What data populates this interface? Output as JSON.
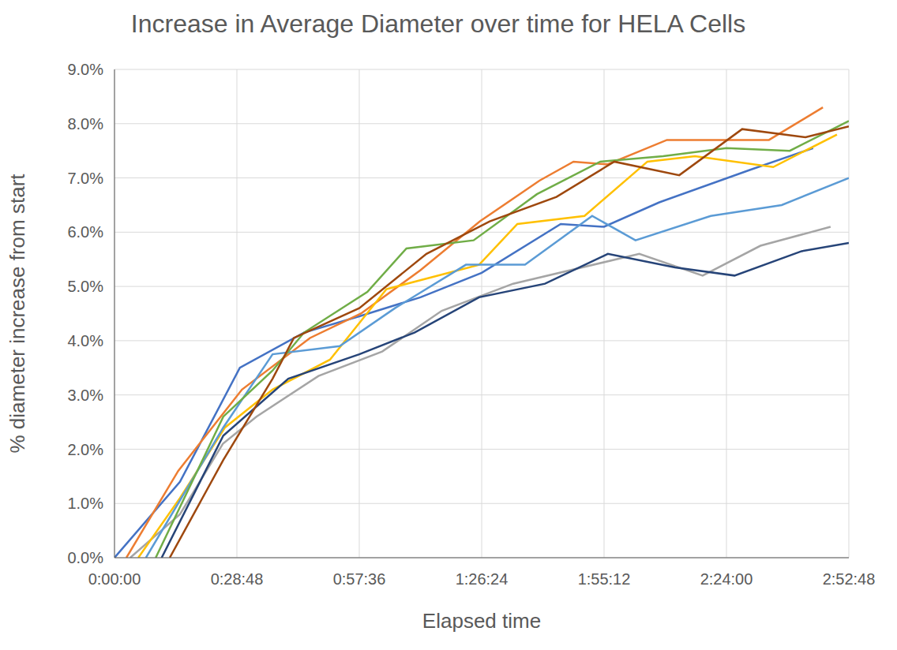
{
  "chart_data": {
    "type": "line",
    "title": "Increase in Average Diameter over time for HELA Cells",
    "x_label": "Elapsed time",
    "y_label": "% diameter increase from start",
    "xlim": [
      0,
      172.8
    ],
    "xticks": [
      {
        "value": 0,
        "label": "0:00:00"
      },
      {
        "value": 28.8,
        "label": "0:28:48"
      },
      {
        "value": 57.6,
        "label": "0:57:36"
      },
      {
        "value": 86.4,
        "label": "1:26:24"
      },
      {
        "value": 115.2,
        "label": "1:55:12"
      },
      {
        "value": 144,
        "label": "2:24:00"
      },
      {
        "value": 172.8,
        "label": "2:52:48"
      }
    ],
    "ylim": [
      0,
      9
    ],
    "yticks": [
      {
        "value": 0,
        "label": "0.0%"
      },
      {
        "value": 1,
        "label": "1.0%"
      },
      {
        "value": 2,
        "label": "2.0%"
      },
      {
        "value": 3,
        "label": "3.0%"
      },
      {
        "value": 4,
        "label": "4.0%"
      },
      {
        "value": 5,
        "label": "5.0%"
      },
      {
        "value": 6,
        "label": "6.0%"
      },
      {
        "value": 7,
        "label": "7.0%"
      },
      {
        "value": 8,
        "label": "8.0%"
      },
      {
        "value": 9,
        "label": "9.0%"
      }
    ],
    "grid": true,
    "series": [
      {
        "color": "#4472c4",
        "x": [
          0,
          15.4,
          29.5,
          44.6,
          57.6,
          72,
          86.4,
          105,
          115.2,
          128.2,
          149.6,
          164.4
        ],
        "values": [
          0,
          1.4,
          3.5,
          4.15,
          4.45,
          4.8,
          5.25,
          6.15,
          6.1,
          6.55,
          7.15,
          7.55
        ]
      },
      {
        "color": "#ed7d31",
        "x": [
          2.8,
          15,
          30,
          46,
          58,
          72,
          86,
          100,
          108,
          116,
          130,
          144,
          154,
          166.7
        ],
        "values": [
          0,
          1.6,
          3.1,
          4.05,
          4.5,
          5.3,
          6.2,
          6.95,
          7.3,
          7.25,
          7.7,
          7.7,
          7.7,
          8.3
        ]
      },
      {
        "color": "#a5a5a5",
        "x": [
          3.7,
          15.4,
          25.5,
          33.4,
          48,
          63,
          77,
          93.8,
          123.5,
          138.4,
          152,
          168.5
        ],
        "values": [
          0,
          0.8,
          2.1,
          2.6,
          3.35,
          3.8,
          4.55,
          5.05,
          5.6,
          5.2,
          5.75,
          6.1
        ]
      },
      {
        "color": "#ffc000",
        "x": [
          5.6,
          15.4,
          26,
          37.2,
          50.7,
          64,
          85.8,
          94.8,
          110.6,
          125.4,
          136.6,
          155,
          170
        ],
        "values": [
          0,
          1.1,
          2.4,
          3.1,
          3.65,
          4.95,
          5.4,
          6.15,
          6.3,
          7.3,
          7.4,
          7.2,
          7.8
        ]
      },
      {
        "color": "#5b9bd5",
        "x": [
          7.4,
          25.6,
          37.2,
          53,
          66,
          82.7,
          96.6,
          112.4,
          122.6,
          140.3,
          157,
          172.8
        ],
        "values": [
          0,
          2.4,
          3.75,
          3.9,
          4.6,
          5.4,
          5.4,
          6.3,
          5.85,
          6.3,
          6.5,
          7.0
        ]
      },
      {
        "color": "#70ad47",
        "x": [
          9.7,
          25.6,
          37.2,
          44.6,
          59.5,
          68.7,
          84.5,
          99.4,
          114.3,
          129.1,
          144,
          158.9,
          172.8
        ],
        "values": [
          0,
          2.6,
          3.45,
          4.15,
          4.9,
          5.7,
          5.85,
          6.7,
          7.3,
          7.4,
          7.55,
          7.5,
          8.05
        ]
      },
      {
        "color": "#264478",
        "x": [
          11.1,
          25.6,
          40.9,
          57.6,
          70.6,
          85.8,
          101.3,
          116.1,
          131.9,
          145.9,
          161.7,
          172.8
        ],
        "values": [
          0,
          2.25,
          3.3,
          3.75,
          4.15,
          4.8,
          5.05,
          5.6,
          5.35,
          5.2,
          5.65,
          5.8
        ]
      },
      {
        "color": "#9e480e",
        "x": [
          13,
          25.6,
          37.2,
          42.2,
          57.6,
          73.4,
          88.3,
          104,
          117.6,
          132.9,
          147.7,
          162.6,
          172.8
        ],
        "values": [
          0,
          1.8,
          3.3,
          4.05,
          4.6,
          5.6,
          6.2,
          6.65,
          7.3,
          7.05,
          7.9,
          7.75,
          7.95
        ]
      }
    ]
  }
}
